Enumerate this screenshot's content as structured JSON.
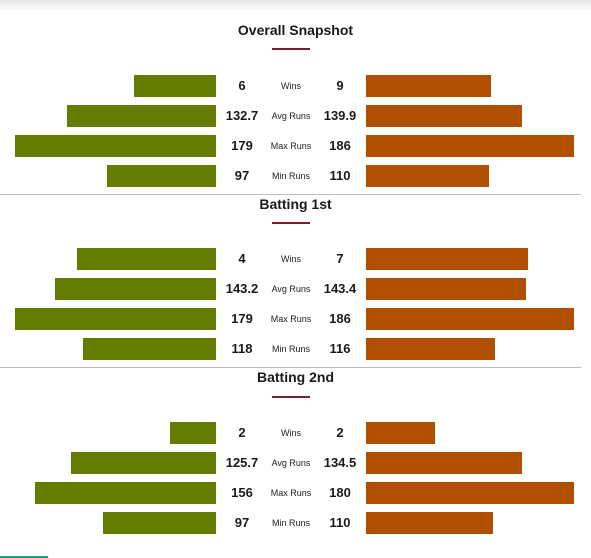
{
  "colors": {
    "left_team": "#647c00",
    "right_team": "#b14f00",
    "accent": "#7a1f33"
  },
  "sections": [
    {
      "title": "Overall Snapshot",
      "rows": [
        {
          "label": "Wins",
          "left": "6",
          "right": "9",
          "left_fraction": 0.41,
          "right_fraction": 0.6
        },
        {
          "label": "Avg Runs",
          "left": "132.7",
          "right": "139.9",
          "left_fraction": 0.74,
          "right_fraction": 0.75
        },
        {
          "label": "Max Runs",
          "left": "179",
          "right": "186",
          "left_fraction": 1.0,
          "right_fraction": 1.0
        },
        {
          "label": "Min Runs",
          "left": "97",
          "right": "110",
          "left_fraction": 0.54,
          "right_fraction": 0.59
        }
      ]
    },
    {
      "title": "Batting 1st",
      "rows": [
        {
          "label": "Wins",
          "left": "4",
          "right": "7",
          "left_fraction": 0.69,
          "right_fraction": 0.78
        },
        {
          "label": "Avg Runs",
          "left": "143.2",
          "right": "143.4",
          "left_fraction": 0.8,
          "right_fraction": 0.77
        },
        {
          "label": "Max Runs",
          "left": "179",
          "right": "186",
          "left_fraction": 1.0,
          "right_fraction": 1.0
        },
        {
          "label": "Min Runs",
          "left": "118",
          "right": "116",
          "left_fraction": 0.66,
          "right_fraction": 0.62
        }
      ]
    },
    {
      "title": "Batting 2nd",
      "rows": [
        {
          "label": "Wins",
          "left": "2",
          "right": "2",
          "left_fraction": 0.23,
          "right_fraction": 0.33
        },
        {
          "label": "Avg Runs",
          "left": "125.7",
          "right": "134.5",
          "left_fraction": 0.72,
          "right_fraction": 0.75
        },
        {
          "label": "Max Runs",
          "left": "156",
          "right": "180",
          "left_fraction": 0.9,
          "right_fraction": 1.0
        },
        {
          "label": "Min Runs",
          "left": "97",
          "right": "110",
          "left_fraction": 0.56,
          "right_fraction": 0.61
        }
      ]
    }
  ]
}
